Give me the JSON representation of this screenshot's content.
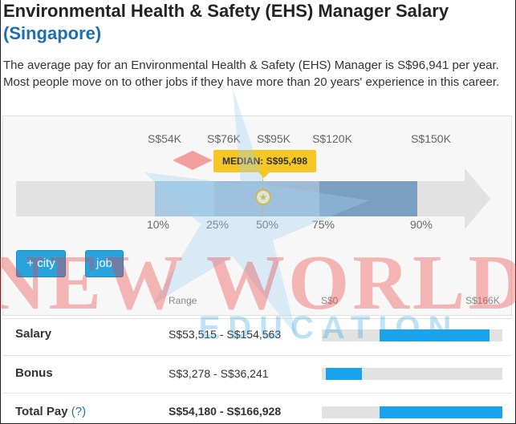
{
  "page": {
    "title": "Environmental Health & Safety (EHS) Manager Salary",
    "location": "(Singapore)",
    "description": "The average pay for an Environmental Health & Safety (EHS) Manager is S$96,941 per year. Most people move on to other jobs if they have more than 20 years' experience in this career."
  },
  "chart": {
    "top_ticks": [
      "S$54K",
      "S$76K",
      "S$95K",
      "S$120K",
      "S$150K"
    ],
    "median_label": "MEDIAN: S$95,498",
    "percentiles": [
      "10%",
      "25%",
      "50%",
      "75%",
      "90%"
    ],
    "colors": {
      "p10_25": "#a9c9e2",
      "p25_75": "#9fbad4",
      "p75_90": "#7b9fc1",
      "track": "#e2e2e2",
      "median": "#f6c625"
    }
  },
  "buttons": {
    "add_city": "+ city",
    "job": "job"
  },
  "table": {
    "range_header": "Range",
    "scale_min": "S$0",
    "scale_max": "S$166K",
    "rows": [
      {
        "label": "Salary",
        "range": "S$53,515 - S$154,563",
        "bar_start": 0.32,
        "bar_end": 0.93
      },
      {
        "label": "Bonus",
        "range": "S$3,278 - S$36,241",
        "bar_start": 0.02,
        "bar_end": 0.22
      },
      {
        "label": "Total Pay",
        "help": "(?)",
        "range": "S$54,180 - S$166,928",
        "bar_start": 0.32,
        "bar_end": 1.0
      }
    ]
  },
  "watermark": {
    "line1": "NEW WORLD",
    "line2": "EDUCATION"
  }
}
